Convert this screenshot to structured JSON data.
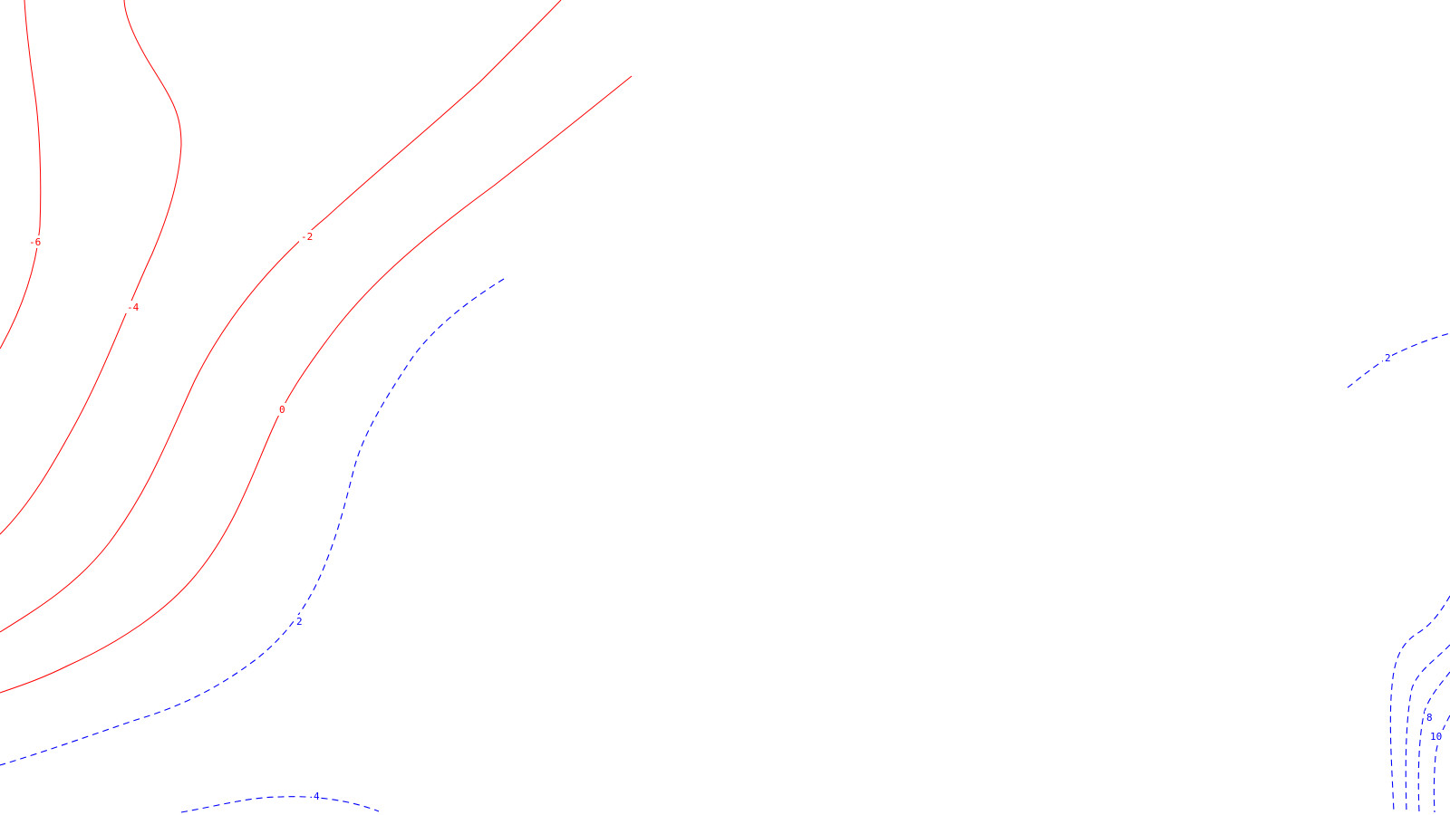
{
  "colors": {
    "negative_contour": "#ff0000",
    "positive_contour": "#0000ff",
    "background": "#ffffff"
  },
  "contours": {
    "neg6": {
      "level": -6,
      "label": "-6"
    },
    "neg4": {
      "level": -4,
      "label": "-4"
    },
    "neg2": {
      "level": -2,
      "label": "-2"
    },
    "zero": {
      "level": 0,
      "label": "0"
    },
    "pos2_left": {
      "level": 2,
      "label": "2"
    },
    "pos2_right": {
      "level": 2,
      "label": "2"
    },
    "pos4_bottom": {
      "level": 4,
      "label": "4"
    },
    "pos8_right": {
      "level": 8,
      "label": "8"
    },
    "pos10_right": {
      "level": 10,
      "label": "10"
    }
  }
}
